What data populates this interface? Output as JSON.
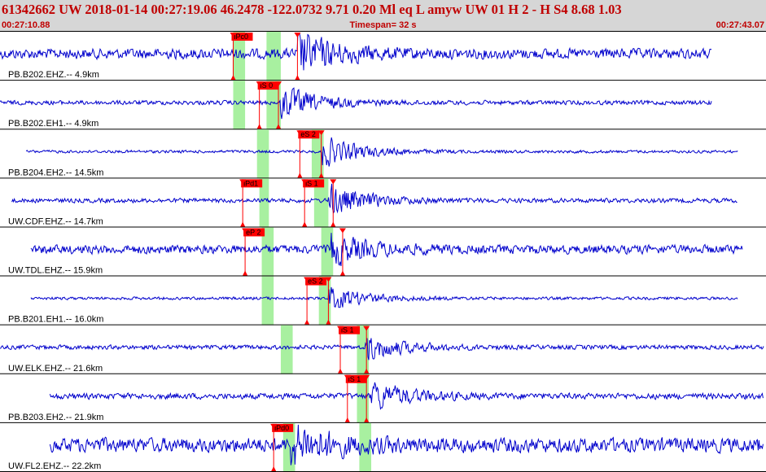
{
  "header": {
    "main": "61342662 UW 2018-01-14 00:27:19.06   46.2478 -122.0732   9.71  0.20 Ml  eq  L amyw     UW 01  H   2  -  H S4    8.68  1.03",
    "start_time": "00:27:10.88",
    "timespan": "Timespan=  32 s",
    "end_time": "00:27:43.07"
  },
  "colors": {
    "trace": "#0000cc",
    "pick": "#ff0000",
    "window": "#a8f0a0",
    "header_bg": "#d6d6d6",
    "header_text": "#c00000"
  },
  "chart_data": {
    "type": "line",
    "time_range_s": [
      0,
      32.19
    ],
    "traces": [
      {
        "label": "PB.B202.EHZ.-- 4.9km",
        "amp": 7,
        "burst_at": 12.5,
        "burst_amp": 30,
        "start": 0.0,
        "end": 29.9,
        "windows": [
          [
            9.8,
            10.3
          ],
          [
            11.2,
            11.8
          ]
        ],
        "picks": [
          {
            "label": "iPc0",
            "t": 9.8
          },
          {
            "label": "",
            "t": 12.5
          }
        ]
      },
      {
        "label": "PB.B202.EH1.-- 4.9km",
        "amp": 3,
        "burst_at": 11.8,
        "burst_amp": 22,
        "start": 0.0,
        "end": 29.9,
        "windows": [
          [
            9.8,
            10.3
          ],
          [
            11.2,
            11.8
          ]
        ],
        "picks": [
          {
            "label": "iS 0",
            "t": 10.9
          },
          {
            "label": "",
            "t": 11.7
          }
        ]
      },
      {
        "label": "PB.B204.EH2.-- 14.5km",
        "amp": 2,
        "burst_at": 13.5,
        "burst_amp": 22,
        "start": 1.1,
        "end": 31.0,
        "windows": [
          [
            10.8,
            11.3
          ],
          [
            13.1,
            13.6
          ]
        ],
        "picks": [
          {
            "label": "eS 2",
            "t": 12.6
          },
          {
            "label": "",
            "t": 13.5
          }
        ]
      },
      {
        "label": "UW.CDF.EHZ.-- 14.7km",
        "amp": 3,
        "burst_at": 13.8,
        "burst_amp": 22,
        "start": 0.5,
        "end": 31.0,
        "windows": [
          [
            10.9,
            11.3
          ],
          [
            13.2,
            13.8
          ]
        ],
        "picks": [
          {
            "label": "iPd1",
            "t": 10.2
          },
          {
            "label": "iS 1",
            "t": 12.8
          },
          {
            "label": "",
            "t": 14.0
          }
        ]
      },
      {
        "label": "UW.TDL.EHZ.-- 15.9km",
        "amp": 6,
        "burst_at": 13.9,
        "burst_amp": 20,
        "start": 1.3,
        "end": 31.2,
        "windows": [
          [
            11.0,
            11.5
          ],
          [
            13.5,
            14.0
          ]
        ],
        "picks": [
          {
            "label": "eP 2",
            "t": 10.3
          },
          {
            "label": "",
            "t": 14.4
          }
        ]
      },
      {
        "label": "PB.B201.EH1.-- 16.0km",
        "amp": 2,
        "burst_at": 13.8,
        "burst_amp": 16,
        "start": 1.3,
        "end": 31.0,
        "windows": [
          [
            11.0,
            11.5
          ],
          [
            13.4,
            13.9
          ]
        ],
        "picks": [
          {
            "label": "eS 2",
            "t": 12.9
          },
          {
            "label": "",
            "t": 13.8
          }
        ]
      },
      {
        "label": "UW.ELK.EHZ.-- 21.6km",
        "amp": 3,
        "burst_at": 15.3,
        "burst_amp": 18,
        "start": 0.0,
        "end": 32.1,
        "windows": [
          [
            11.8,
            12.3
          ],
          [
            15.0,
            15.5
          ]
        ],
        "picks": [
          {
            "label": "iS 1",
            "t": 14.3
          },
          {
            "label": "",
            "t": 15.4
          }
        ]
      },
      {
        "label": "PB.B203.EH2.-- 21.9km",
        "amp": 4,
        "burst_at": 15.6,
        "burst_amp": 20,
        "start": 2.1,
        "end": 32.1,
        "windows": [
          [
            15.0,
            15.5
          ]
        ],
        "picks": [
          {
            "label": "iS 1",
            "t": 14.6
          },
          {
            "label": "",
            "t": 15.4
          }
        ]
      },
      {
        "label": "UW.FL2.EHZ.-- 22.2km",
        "amp": 10,
        "burst_at": 12.2,
        "burst_amp": 28,
        "start": 2.1,
        "end": 32.1,
        "windows": [
          [
            11.9,
            12.4
          ],
          [
            15.1,
            15.6
          ]
        ],
        "picks": [
          {
            "label": "iPd0",
            "t": 11.5
          }
        ]
      }
    ]
  }
}
